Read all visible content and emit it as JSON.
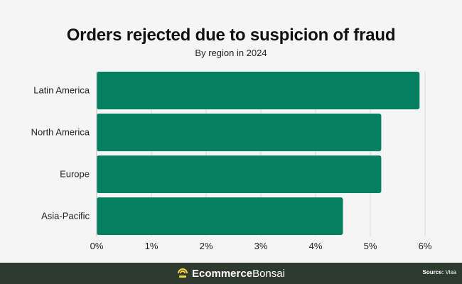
{
  "chart_data": {
    "type": "bar",
    "orientation": "horizontal",
    "title": "Orders rejected due to suspicion of fraud",
    "subtitle": "By region in 2024",
    "categories": [
      "Latin America",
      "North America",
      "Europe",
      "Asia-Pacific"
    ],
    "values": [
      5.9,
      5.2,
      5.2,
      4.5
    ],
    "unit": "%",
    "xlim": [
      0,
      6
    ],
    "xticks": [
      "0%",
      "1%",
      "2%",
      "3%",
      "4%",
      "5%",
      "6%"
    ],
    "xlabel": "",
    "ylabel": "",
    "grid": "vertical",
    "bar_color": "#047f5f"
  },
  "footer": {
    "brand_part1": "Ecommerce",
    "brand_part2": "Bonsai",
    "source_label": "Source:",
    "source_value": "Visa",
    "logo_icon": "bonsai-logo-icon",
    "logo_color": "#f2d33c",
    "background": "#2f3a2f"
  }
}
